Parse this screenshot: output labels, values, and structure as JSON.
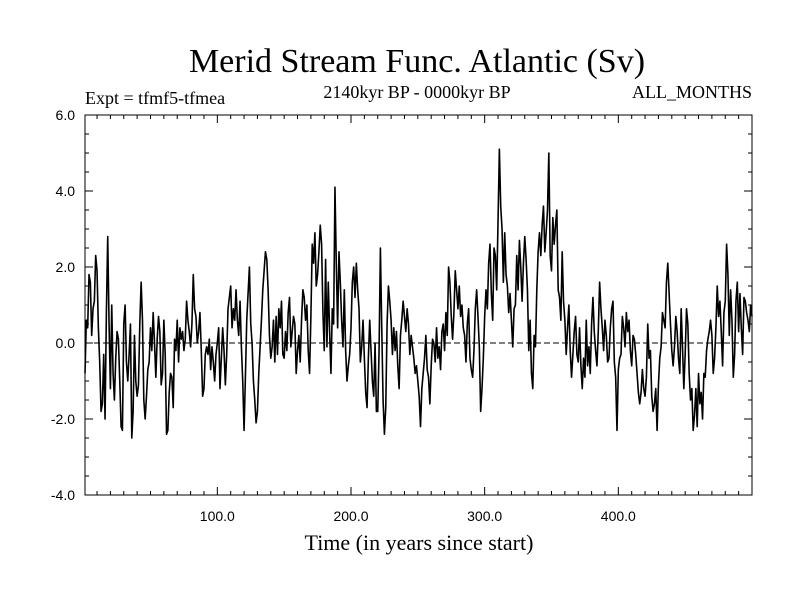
{
  "chart_data": {
    "type": "line",
    "title": "Merid Stream Func. Atlantic (Sv)",
    "subtitle_left": "Expt = tfmf5-tfmea",
    "subtitle_center": "2140kyr BP - 0000kyr BP",
    "subtitle_right": "ALL_MONTHS",
    "xlabel": "Time (in years since start)",
    "ylabel": "",
    "xlim": [
      1,
      500
    ],
    "ylim": [
      -4.0,
      6.0
    ],
    "x_ticks": [
      100,
      200,
      300,
      400
    ],
    "x_tick_labels": [
      "100.0",
      "200.0",
      "300.0",
      "400.0"
    ],
    "y_ticks": [
      -4,
      -2,
      0,
      2,
      4,
      6
    ],
    "y_tick_labels": [
      "-4.0",
      "-2.0",
      "0.0",
      "2.0",
      "4.0",
      "6.0"
    ],
    "zero_line": "dashed",
    "series": [
      {
        "name": "Merid Stream Func. Atlantic",
        "x_start": 1,
        "x_step": 1,
        "values": [
          -0.8,
          0.6,
          0.4,
          1.8,
          1.6,
          0.2,
          0.9,
          1.1,
          2.3,
          1.9,
          0.4,
          -0.5,
          -1.8,
          -1.6,
          -0.3,
          -2.0,
          0.8,
          2.8,
          0.5,
          -1.2,
          1.0,
          -0.8,
          -1.5,
          -0.4,
          0.3,
          0.1,
          -1.0,
          -2.2,
          -2.3,
          0.5,
          1.0,
          -0.5,
          -1.0,
          -0.3,
          0.5,
          -2.5,
          -1.8,
          0.2,
          -1.0,
          -1.4,
          -1.1,
          0.5,
          1.6,
          0.6,
          -1.5,
          -2.0,
          -1.4,
          -0.7,
          -0.5,
          0.4,
          -0.2,
          0.8,
          0.0,
          -0.9,
          0.1,
          0.7,
          0.3,
          -1.1,
          -0.8,
          0.6,
          -0.3,
          -2.4,
          -2.3,
          -1.3,
          -0.8,
          -0.9,
          -1.7,
          0.1,
          -0.2,
          0.6,
          -0.5,
          0.4,
          0.1,
          0.3,
          -0.2,
          0.1,
          1.1,
          0.6,
          0.3,
          -0.1,
          0.5,
          1.8,
          0.9,
          0.7,
          0.0,
          0.3,
          0.8,
          -0.2,
          -1.4,
          -1.2,
          -0.3,
          -0.1,
          -0.3,
          0.1,
          -0.7,
          -0.1,
          -0.5,
          -1.0,
          -0.3,
          0.0,
          0.4,
          -1.2,
          -0.4,
          0.4,
          -0.2,
          -1.1,
          -0.3,
          0.9,
          1.2,
          1.5,
          0.4,
          0.9,
          0.6,
          1.4,
          0.6,
          0.2,
          1.1,
          -0.1,
          -1.0,
          -2.3,
          -0.9,
          0.6,
          1.3,
          2.0,
          0.5,
          0.0,
          -1.0,
          -1.5,
          -2.1,
          -1.8,
          -0.8,
          -0.1,
          0.6,
          1.4,
          1.9,
          2.4,
          2.2,
          1.4,
          0.2,
          -0.4,
          -0.1,
          0.6,
          -0.5,
          0.7,
          -0.3,
          0.9,
          0.4,
          1.1,
          -0.3,
          -0.4,
          0.3,
          -0.2,
          0.8,
          1.2,
          -0.1,
          0.3,
          0.7,
          0.5,
          -0.8,
          -0.2,
          0.2,
          -0.5,
          0.6,
          1.4,
          1.2,
          0.6,
          1.0,
          -0.2,
          -0.8,
          0.7,
          2.6,
          2.1,
          2.9,
          1.5,
          1.8,
          2.4,
          3.1,
          2.6,
          0.8,
          -0.2,
          2.2,
          -0.1,
          1.6,
          0.3,
          -0.8,
          0.9,
          0.5,
          4.1,
          2.1,
          0.4,
          2.4,
          1.6,
          0.6,
          -0.1,
          1.4,
          -0.2,
          -1.0,
          -0.6,
          -0.3,
          0.4,
          1.6,
          2.0,
          1.2,
          2.1,
          1.4,
          0.9,
          -0.5,
          -0.1,
          0.6,
          -0.4,
          -1.3,
          -1.7,
          -0.4,
          0.6,
          -0.2,
          -1.0,
          -1.4,
          0.0,
          -1.8,
          -1.8,
          -0.2,
          2.5,
          0.4,
          -1.5,
          -2.4,
          -1.7,
          0.5,
          1.5,
          1.1,
          0.6,
          -0.3,
          0.4,
          -0.2,
          0.3,
          -0.6,
          -1.2,
          0.2,
          0.6,
          1.1,
          0.7,
          0.3,
          0.9,
          0.5,
          -0.3,
          0.2,
          -0.1,
          -0.4,
          -0.8,
          -0.6,
          -1.0,
          -1.4,
          -2.2,
          -1.2,
          -0.8,
          -0.4,
          0.2,
          -0.7,
          -0.9,
          -1.6,
          -0.6,
          0.1,
          0.0,
          -0.5,
          0.4,
          -0.4,
          -0.1,
          -0.7,
          0.3,
          0.5,
          -0.2,
          0.8,
          0.2,
          2.0,
          1.6,
          0.7,
          0.1,
          0.8,
          1.9,
          1.4,
          0.9,
          1.5,
          0.7,
          1.0,
          0.4,
          0.2,
          -0.5,
          0.5,
          0.9,
          -0.4,
          -0.7,
          -0.9,
          -0.2,
          0.9,
          1.4,
          0.7,
          -0.1,
          -1.8,
          -1.2,
          -0.4,
          0.7,
          1.4,
          0.9,
          2.1,
          2.6,
          1.3,
          0.6,
          2.5,
          2.3,
          1.4,
          3.2,
          5.1,
          3.6,
          3.0,
          1.6,
          2.9,
          1.8,
          1.5,
          0.8,
          1.3,
          0.6,
          -0.1,
          0.9,
          1.0,
          2.3,
          1.4,
          2.7,
          2.0,
          1.1,
          2.1,
          2.8,
          2.2,
          1.4,
          -0.2,
          0.6,
          -0.8,
          -1.2,
          0.2,
          -0.1,
          1.4,
          2.4,
          2.9,
          2.3,
          3.1,
          3.6,
          2.4,
          2.9,
          3.5,
          5.0,
          2.3,
          1.9,
          3.3,
          2.6,
          3.1,
          3.5,
          1.4,
          1.2,
          0.6,
          2.4,
          1.1,
          0.6,
          -0.3,
          0.4,
          1.0,
          -0.2,
          -0.9,
          -0.3,
          0.3,
          0.7,
          -0.3,
          -0.5,
          0.4,
          -0.6,
          -1.2,
          -0.4,
          -0.9,
          0.6,
          -0.6,
          -0.1,
          -0.8,
          0.5,
          1.2,
          0.3,
          -0.2,
          -0.6,
          0.3,
          1.6,
          0.9,
          0.4,
          -0.2,
          0.6,
          0.2,
          -0.5,
          -0.4,
          0.4,
          0.9,
          1.1,
          -0.5,
          -0.9,
          -2.3,
          -0.7,
          -0.4,
          -0.3,
          0.7,
          0.4,
          -0.1,
          0.8,
          0.3,
          0.6,
          -0.2,
          -0.6,
          0.2,
          0.1,
          -0.3,
          -0.8,
          -1.3,
          -1.6,
          -1.3,
          -0.7,
          -1.2,
          -1.4,
          -0.9,
          0.5,
          -0.4,
          -0.2,
          -1.4,
          -1.8,
          -1.6,
          -1.2,
          -2.3,
          -1.1,
          -0.4,
          -0.1,
          0.8,
          0.6,
          0.4,
          1.6,
          2.1,
          1.3,
          0.5,
          -0.2,
          -0.6,
          -0.1,
          0.7,
          0.3,
          -0.4,
          -0.8,
          0.9,
          -0.1,
          -1.2,
          -0.3,
          0.9,
          0.5,
          -0.8,
          -1.5,
          -1.2,
          -2.3,
          -1.9,
          -1.2,
          -2.2,
          -0.8,
          -1.6,
          -1.3,
          -2.0,
          -0.8,
          -0.9,
          -0.2,
          0.1,
          0.3,
          0.6,
          0.2,
          -0.8,
          -0.4,
          0.4,
          1.5,
          0.7,
          1.1,
          0.3,
          -0.6,
          0.8,
          1.1,
          2.6,
          1.8,
          0.2,
          1.4,
          0.6,
          -0.9,
          -0.3,
          1.1,
          1.6,
          0.3,
          1.3,
          0.4,
          -0.3,
          1.2,
          1.1,
          0.8,
          0.6,
          0.3,
          1.0,
          0.7
        ]
      }
    ],
    "colors": {
      "line": "#000000",
      "axis": "#000000",
      "background": "#ffffff"
    }
  }
}
